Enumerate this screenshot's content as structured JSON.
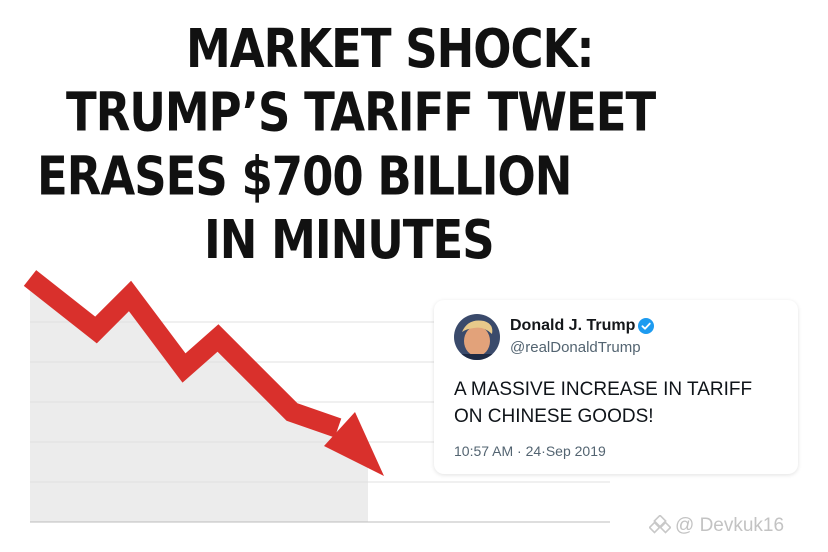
{
  "headline": {
    "lines": [
      "MARKET SHOCK:",
      "TRUMP’S TARIFF TWEET",
      "ERASES $700 BILLION",
      "IN MINUTES"
    ]
  },
  "tweet": {
    "name": "Donald J. Trump",
    "handle": "@realDonaldTrump",
    "text_lines": [
      "A MASSIVE INCREASE IN TARIFF",
      "ON CHINESE GOODS!"
    ],
    "timestamp": "10:57 AM · 24·Sep 2019",
    "verified_badge_icon": "verified-check-icon",
    "verified_color": "#1d9bf0"
  },
  "chart": {
    "trend": "falling",
    "arrow_icon": "downward-trend-arrow-icon",
    "arrow_color": "#d9302c",
    "area_color": "#ececec"
  },
  "watermark": {
    "text": "@ Devkuk16",
    "icon": "watermark-logo-icon"
  }
}
